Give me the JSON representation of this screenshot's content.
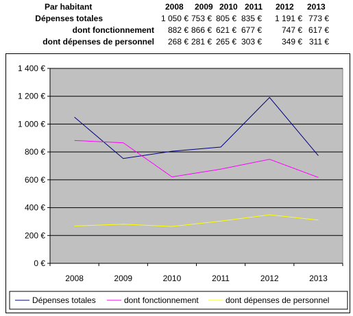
{
  "table": {
    "header_label": "Par habitant",
    "years": [
      "2008",
      "2009",
      "2010",
      "2011",
      "2012",
      "2013"
    ],
    "rows": [
      {
        "label": "Dépenses totales",
        "values": [
          "1 050 €",
          "753 €",
          "805 €",
          "835 €",
          "1 191 €",
          "773 €"
        ]
      },
      {
        "label": "dont fonctionnement",
        "values": [
          "882 €",
          "866 €",
          "621 €",
          "677 €",
          "747 €",
          "617 €"
        ]
      },
      {
        "label": "dont dépenses de personnel",
        "values": [
          "268 €",
          "281 €",
          "265 €",
          "303 €",
          "349 €",
          "311 €"
        ]
      }
    ]
  },
  "chart_data": {
    "type": "line",
    "categories": [
      "2008",
      "2009",
      "2010",
      "2011",
      "2012",
      "2013"
    ],
    "series": [
      {
        "name": "Dépenses totales",
        "values": [
          1050,
          753,
          805,
          835,
          1191,
          773
        ],
        "color": "#000080"
      },
      {
        "name": "dont fonctionnement",
        "values": [
          882,
          866,
          621,
          677,
          747,
          617
        ],
        "color": "#ff00ff"
      },
      {
        "name": "dont dépenses de personnel",
        "values": [
          268,
          281,
          265,
          303,
          349,
          311
        ],
        "color": "#ffff00"
      }
    ],
    "ylim": [
      0,
      1400
    ],
    "yticks": [
      0,
      200,
      400,
      600,
      800,
      1000,
      1200,
      1400
    ],
    "ytick_labels": [
      "0 €",
      "200 €",
      "400 €",
      "600 €",
      "800 €",
      "1 000 €",
      "1 200 €",
      "1 400 €"
    ],
    "grid": true,
    "plot_background": "#c0c0c0",
    "legend_position": "bottom"
  }
}
